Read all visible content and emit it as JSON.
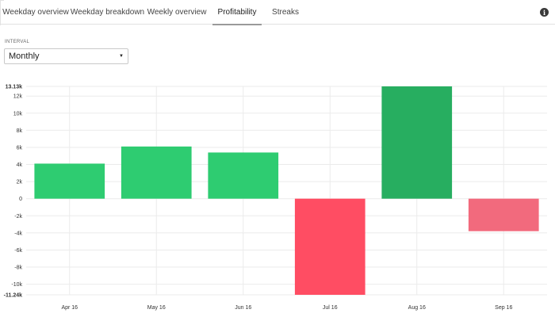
{
  "tabs": [
    {
      "label": "Weekday overview",
      "active": false
    },
    {
      "label": "Weekday breakdown",
      "active": false
    },
    {
      "label": "Weekly overview",
      "active": false
    },
    {
      "label": "Profitability",
      "active": true
    },
    {
      "label": "Streaks",
      "active": false
    }
  ],
  "info_icon": "info-icon",
  "interval": {
    "label": "INTERVAL",
    "selected": "Monthly"
  },
  "chart_data": {
    "type": "bar",
    "categories": [
      "Apr 16",
      "May 16",
      "Jun 16",
      "Jul 16",
      "Aug 16",
      "Sep 16"
    ],
    "values": [
      4100,
      6100,
      5400,
      -11240,
      13130,
      -3800
    ],
    "colors": [
      "#2ecc71",
      "#2ecc71",
      "#2ecc71",
      "#ff4d63",
      "#27ae60",
      "#f26a7d"
    ],
    "ylim": [
      -11240,
      13130
    ],
    "yticks": [
      {
        "label": "13.13k",
        "value": 13130,
        "bold": true
      },
      {
        "label": "12k",
        "value": 12000
      },
      {
        "label": "10k",
        "value": 10000
      },
      {
        "label": "8k",
        "value": 8000
      },
      {
        "label": "6k",
        "value": 6000
      },
      {
        "label": "4k",
        "value": 4000
      },
      {
        "label": "2k",
        "value": 2000
      },
      {
        "label": "0",
        "value": 0
      },
      {
        "label": "-2k",
        "value": -2000
      },
      {
        "label": "-4k",
        "value": -4000
      },
      {
        "label": "-6k",
        "value": -6000
      },
      {
        "label": "-8k",
        "value": -8000
      },
      {
        "label": "-10k",
        "value": -10000
      },
      {
        "label": "-11.24k",
        "value": -11240,
        "bold": true
      }
    ],
    "grid": true,
    "legend": "none"
  }
}
